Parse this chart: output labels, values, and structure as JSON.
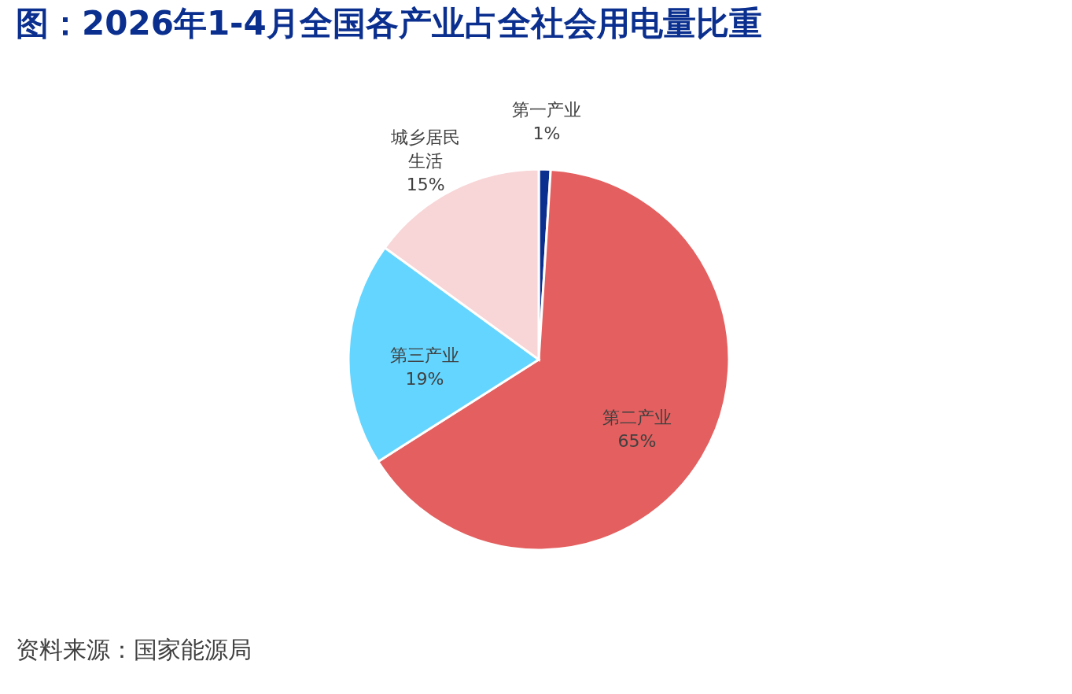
{
  "chart_data": {
    "type": "pie",
    "title": "图：2026年1-4月全国各产业占全社会用电量比重",
    "categories": [
      "第一产业",
      "第二产业",
      "第三产业",
      "城乡居民生活"
    ],
    "values": [
      1,
      65,
      19,
      15
    ],
    "colors": [
      "#0a2f8f",
      "#e45f5f",
      "#63d5ff",
      "#f8d5d6"
    ],
    "value_labels": [
      "1%",
      "65%",
      "19%",
      "15%"
    ],
    "legend": false,
    "annotations": [
      "资料来源：国家能源局"
    ]
  }
}
